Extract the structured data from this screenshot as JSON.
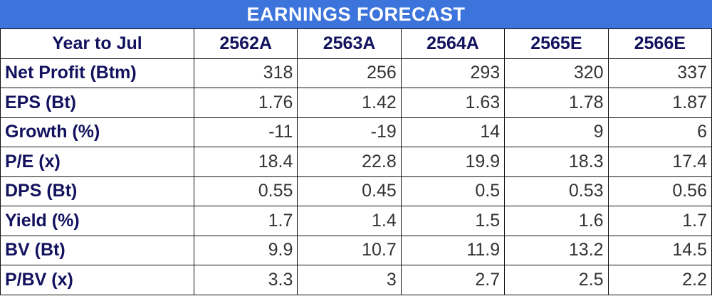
{
  "header": {
    "title": "EARNINGS FORECAST"
  },
  "table": {
    "columns": [
      "Year to Jul",
      "2562A",
      "2563A",
      "2564A",
      "2565E",
      "2566E"
    ],
    "rows": [
      [
        "Net Profit (Btm)",
        "318",
        "256",
        "293",
        "320",
        "337"
      ],
      [
        "EPS (Bt)",
        "1.76",
        "1.42",
        "1.63",
        "1.78",
        "1.87"
      ],
      [
        "Growth (%)",
        "-11",
        "-19",
        "14",
        "9",
        "6"
      ],
      [
        "P/E (x)",
        "18.4",
        "22.8",
        "19.9",
        "18.3",
        "17.4"
      ],
      [
        "DPS (Bt)",
        "0.55",
        "0.45",
        "0.5",
        "0.53",
        "0.56"
      ],
      [
        "Yield (%)",
        "1.7",
        "1.4",
        "1.5",
        "1.6",
        "1.7"
      ],
      [
        "BV (Bt)",
        "9.9",
        "10.7",
        "11.9",
        "13.2",
        "14.5"
      ],
      [
        "P/BV (x)",
        "3.3",
        "3",
        "2.7",
        "2.5",
        "2.2"
      ]
    ]
  }
}
